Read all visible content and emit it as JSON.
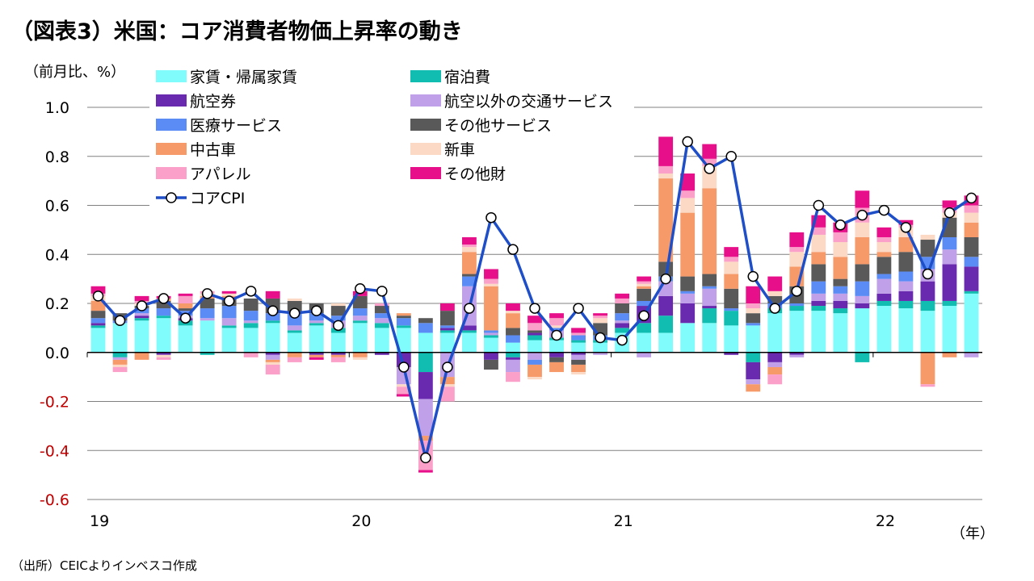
{
  "chart_data": {
    "type": "bar",
    "stacked": true,
    "title": "（図表3）米国：コア消費者物価上昇率の動き",
    "ylabel": "（前月比、%）",
    "xlabel": "（年）",
    "source": "（出所）CEICよりインベスコ作成",
    "ylim": [
      -0.6,
      1.0
    ],
    "yticks": [
      {
        "value": 1.0,
        "label": "1.0"
      },
      {
        "value": 0.8,
        "label": "0.8"
      },
      {
        "value": 0.6,
        "label": "0.6"
      },
      {
        "value": 0.4,
        "label": "0.4"
      },
      {
        "value": 0.2,
        "label": "0.2"
      },
      {
        "value": 0.0,
        "label": "0.0"
      },
      {
        "value": -0.2,
        "label": "-0.2"
      },
      {
        "value": -0.4,
        "label": "-0.4"
      },
      {
        "value": -0.6,
        "label": "-0.6"
      }
    ],
    "xticks": [
      {
        "index": 0,
        "label": "19"
      },
      {
        "index": 12,
        "label": "20"
      },
      {
        "index": 24,
        "label": "21"
      },
      {
        "index": 36,
        "label": "22"
      }
    ],
    "categories": [
      "2019-01",
      "2019-02",
      "2019-03",
      "2019-04",
      "2019-05",
      "2019-06",
      "2019-07",
      "2019-08",
      "2019-09",
      "2019-10",
      "2019-11",
      "2019-12",
      "2020-01",
      "2020-02",
      "2020-03",
      "2020-04",
      "2020-05",
      "2020-06",
      "2020-07",
      "2020-08",
      "2020-09",
      "2020-10",
      "2020-11",
      "2020-12",
      "2021-01",
      "2021-02",
      "2021-03",
      "2021-04",
      "2021-05",
      "2021-06",
      "2021-07",
      "2021-08",
      "2021-09",
      "2021-10",
      "2021-11",
      "2021-12",
      "2022-01",
      "2022-02",
      "2022-03",
      "2022-04",
      "2022-05"
    ],
    "series": [
      {
        "name": "家賃・帰属家賃",
        "color": "#7ffcfb",
        "values": [
          0.1,
          0.12,
          0.13,
          0.14,
          0.11,
          0.13,
          0.1,
          0.1,
          0.12,
          0.08,
          0.11,
          0.08,
          0.12,
          0.1,
          0.1,
          0.08,
          0.08,
          0.08,
          0.06,
          0.04,
          0.05,
          0.05,
          0.04,
          0.04,
          0.08,
          0.08,
          0.08,
          0.12,
          0.12,
          0.11,
          0.11,
          0.16,
          0.17,
          0.17,
          0.16,
          0.18,
          0.19,
          0.18,
          0.17,
          0.19,
          0.24
        ]
      },
      {
        "name": "宿泊費",
        "color": "#10bdb0",
        "values": [
          0.01,
          -0.02,
          0.01,
          0.01,
          0.02,
          -0.01,
          0.01,
          0.02,
          0.01,
          0.01,
          0.01,
          0.02,
          0.01,
          0.02,
          0.01,
          -0.08,
          0.01,
          0.01,
          0.01,
          -0.02,
          0.02,
          0.01,
          0.01,
          0.01,
          0.02,
          0.04,
          0.07,
          0.0,
          0.06,
          0.06,
          -0.04,
          0.02,
          0.02,
          0.02,
          0.02,
          -0.04,
          0.02,
          0.03,
          0.04,
          0.02,
          0.01
        ]
      },
      {
        "name": "航空券",
        "color": "#6a2ab0",
        "values": [
          0.01,
          0.0,
          0.01,
          -0.01,
          0.01,
          0.0,
          0.0,
          0.0,
          -0.01,
          0.0,
          -0.01,
          -0.01,
          0.0,
          -0.01,
          -0.06,
          -0.11,
          0.01,
          0.02,
          -0.03,
          -0.01,
          0.01,
          -0.02,
          -0.01,
          0.0,
          0.02,
          0.07,
          0.08,
          0.08,
          0.01,
          -0.01,
          -0.07,
          -0.04,
          -0.01,
          0.02,
          0.03,
          0.02,
          0.03,
          0.04,
          0.08,
          0.15,
          0.1
        ]
      },
      {
        "name": "航空以外の交通サービス",
        "color": "#c0a0e8",
        "values": [
          0.0,
          -0.01,
          0.01,
          0.0,
          0.01,
          0.01,
          0.03,
          0.01,
          -0.02,
          0.02,
          0.01,
          0.03,
          0.02,
          0.02,
          -0.07,
          -0.15,
          -0.1,
          0.16,
          0.01,
          -0.05,
          -0.03,
          0.03,
          -0.02,
          -0.01,
          0.01,
          -0.02,
          0.06,
          0.04,
          0.07,
          0.0,
          -0.02,
          -0.02,
          -0.01,
          0.03,
          0.03,
          0.03,
          0.06,
          0.04,
          0.05,
          0.06,
          -0.02
        ]
      },
      {
        "name": "医療サービス",
        "color": "#5b8cf5",
        "values": [
          0.02,
          0.01,
          0.02,
          0.03,
          0.02,
          0.04,
          0.05,
          0.04,
          0.03,
          0.05,
          0.03,
          0.02,
          0.03,
          0.02,
          0.03,
          0.04,
          0.01,
          0.04,
          0.01,
          0.03,
          -0.02,
          0.01,
          0.02,
          0.02,
          0.03,
          0.02,
          0.02,
          0.01,
          0.01,
          0.01,
          0.01,
          0.02,
          0.01,
          0.05,
          0.03,
          0.06,
          0.02,
          0.04,
          0.05,
          0.05,
          0.04
        ]
      },
      {
        "name": "その他サービス",
        "color": "#595959",
        "values": [
          0.03,
          0.03,
          0.01,
          0.03,
          0.01,
          0.04,
          0.03,
          0.05,
          0.06,
          0.05,
          0.04,
          0.04,
          0.05,
          0.03,
          0.01,
          0.02,
          0.06,
          0.01,
          -0.04,
          0.03,
          0.01,
          -0.02,
          -0.02,
          0.05,
          0.04,
          0.05,
          0.06,
          0.06,
          0.05,
          0.08,
          0.04,
          0.03,
          0.07,
          0.07,
          0.03,
          0.07,
          0.07,
          0.08,
          0.07,
          0.08,
          0.08
        ]
      },
      {
        "name": "中古車",
        "color": "#f79a6a",
        "values": [
          0.04,
          -0.02,
          -0.03,
          0.01,
          0.02,
          0.01,
          0.01,
          0.0,
          -0.01,
          -0.02,
          -0.01,
          -0.01,
          -0.02,
          0.0,
          0.01,
          -0.02,
          -0.03,
          0.09,
          0.18,
          0.06,
          -0.05,
          -0.04,
          -0.03,
          0.0,
          0.0,
          0.01,
          0.34,
          0.26,
          0.35,
          0.06,
          -0.03,
          -0.03,
          0.08,
          0.05,
          0.09,
          0.11,
          0.02,
          0.06,
          -0.13,
          -0.02,
          0.06
        ]
      },
      {
        "name": "新車",
        "color": "#fbd9c5",
        "values": [
          0.02,
          -0.01,
          0.01,
          -0.01,
          0.0,
          0.01,
          0.01,
          0.0,
          -0.01,
          0.01,
          0.0,
          0.01,
          -0.01,
          0.0,
          -0.01,
          0.0,
          -0.01,
          0.02,
          0.01,
          0.01,
          -0.01,
          0.01,
          -0.01,
          0.02,
          0.0,
          0.01,
          0.02,
          0.06,
          0.09,
          0.05,
          0.02,
          0.02,
          0.06,
          0.07,
          0.06,
          0.06,
          0.04,
          0.04,
          0.02,
          0.02,
          0.04
        ]
      },
      {
        "name": "アパレル",
        "color": "#fba0c8",
        "values": [
          0.01,
          -0.02,
          0.01,
          -0.01,
          0.03,
          0.01,
          0.0,
          -0.02,
          -0.04,
          -0.02,
          0.0,
          -0.02,
          0.0,
          0.01,
          -0.03,
          -0.12,
          -0.06,
          0.01,
          0.02,
          -0.04,
          0.03,
          0.03,
          0.01,
          0.01,
          0.02,
          0.01,
          0.03,
          0.03,
          0.03,
          0.02,
          0.02,
          -0.04,
          0.02,
          0.03,
          0.04,
          0.06,
          0.02,
          0.01,
          -0.01,
          0.02,
          0.03
        ]
      },
      {
        "name": "その他財",
        "color": "#e8108a",
        "values": [
          0.03,
          0.0,
          0.02,
          0.01,
          0.01,
          0.0,
          0.01,
          0.0,
          0.03,
          0.0,
          -0.01,
          0.0,
          0.02,
          0.0,
          -0.01,
          -0.01,
          0.03,
          0.03,
          0.04,
          0.03,
          0.03,
          0.02,
          0.02,
          0.01,
          0.02,
          0.02,
          0.12,
          0.07,
          0.06,
          0.04,
          0.07,
          0.06,
          0.06,
          0.05,
          0.04,
          0.07,
          0.04,
          0.02,
          0.0,
          0.03,
          0.04
        ]
      }
    ],
    "line": {
      "name": "コアCPI",
      "color": "#1e4fc8",
      "values": [
        0.23,
        0.13,
        0.19,
        0.22,
        0.14,
        0.24,
        0.21,
        0.25,
        0.17,
        0.16,
        0.17,
        0.11,
        0.26,
        0.25,
        -0.06,
        -0.43,
        -0.06,
        0.18,
        0.55,
        0.42,
        0.18,
        0.07,
        0.18,
        0.06,
        0.05,
        0.15,
        0.3,
        0.86,
        0.75,
        0.8,
        0.31,
        0.18,
        0.25,
        0.6,
        0.52,
        0.56,
        0.58,
        0.51,
        0.32,
        0.57,
        0.63
      ]
    }
  }
}
